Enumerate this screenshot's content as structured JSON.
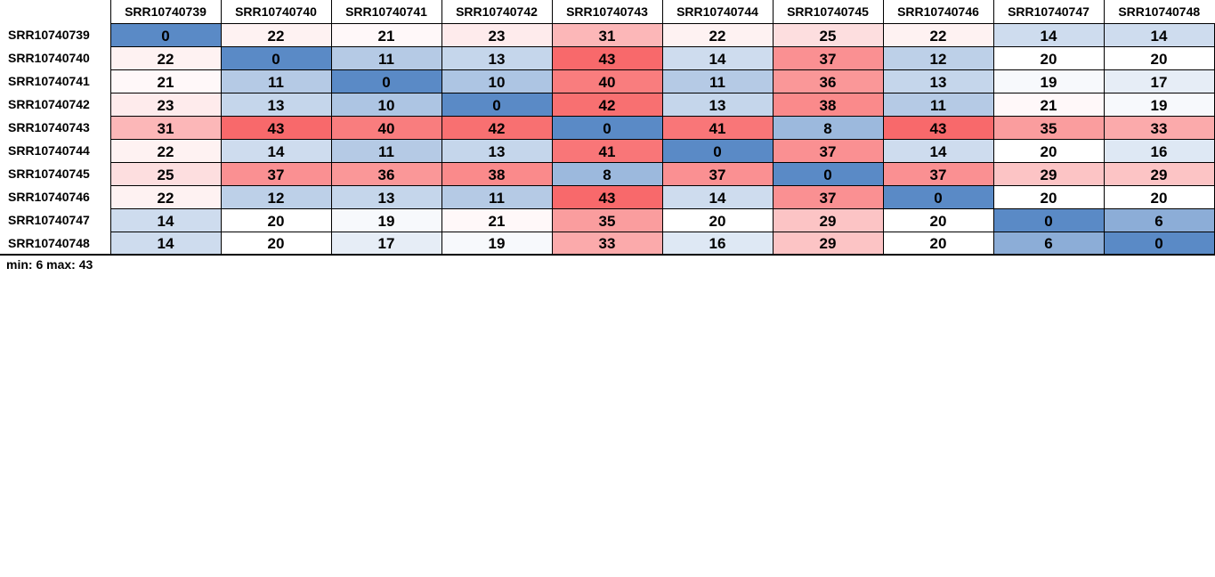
{
  "chart_data": {
    "type": "heatmap",
    "title": "",
    "x": [
      "SRR10740739",
      "SRR10740740",
      "SRR10740741",
      "SRR10740742",
      "SRR10740743",
      "SRR10740744",
      "SRR10740745",
      "SRR10740746",
      "SRR10740747",
      "SRR10740748"
    ],
    "y": [
      "SRR10740739",
      "SRR10740740",
      "SRR10740741",
      "SRR10740742",
      "SRR10740743",
      "SRR10740744",
      "SRR10740745",
      "SRR10740746",
      "SRR10740747",
      "SRR10740748"
    ],
    "values": [
      [
        0,
        22,
        21,
        23,
        31,
        22,
        25,
        22,
        14,
        14
      ],
      [
        22,
        0,
        11,
        13,
        43,
        14,
        37,
        12,
        20,
        20
      ],
      [
        21,
        11,
        0,
        10,
        40,
        11,
        36,
        13,
        19,
        17
      ],
      [
        23,
        13,
        10,
        0,
        42,
        13,
        38,
        11,
        21,
        19
      ],
      [
        31,
        43,
        40,
        42,
        0,
        41,
        8,
        43,
        35,
        33
      ],
      [
        22,
        14,
        11,
        13,
        41,
        0,
        37,
        14,
        20,
        16
      ],
      [
        25,
        37,
        36,
        38,
        8,
        37,
        0,
        37,
        29,
        29
      ],
      [
        22,
        12,
        13,
        11,
        43,
        14,
        37,
        0,
        20,
        20
      ],
      [
        14,
        20,
        19,
        21,
        35,
        20,
        29,
        20,
        0,
        6
      ],
      [
        14,
        20,
        17,
        19,
        33,
        16,
        29,
        20,
        6,
        0
      ]
    ],
    "colors": {
      "low": "#5a8ac6",
      "mid": "#ffffff",
      "high": "#f8696b"
    },
    "midpoint": 20,
    "summary_label": "min: 6 max: 43"
  }
}
